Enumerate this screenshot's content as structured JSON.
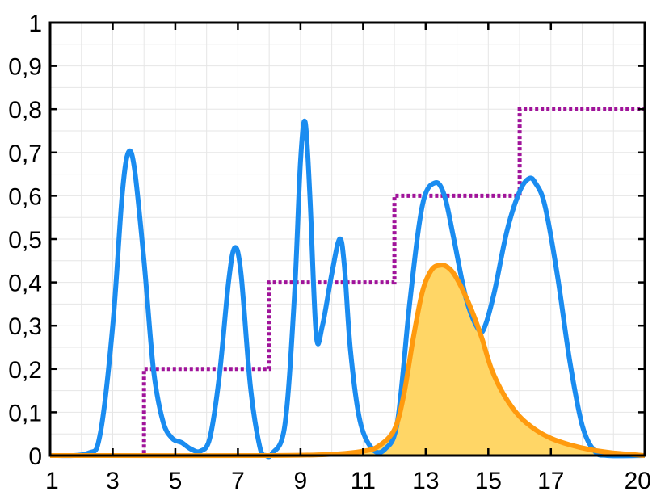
{
  "chart_data": {
    "type": "line",
    "title": "",
    "xlabel": "",
    "ylabel": "",
    "xlim": [
      1,
      20
    ],
    "ylim": [
      0,
      1
    ],
    "grid": true,
    "x_ticks": [
      {
        "value": 1,
        "label": "1"
      },
      {
        "value": 3,
        "label": "3"
      },
      {
        "value": 5,
        "label": "5"
      },
      {
        "value": 7,
        "label": "7"
      },
      {
        "value": 9,
        "label": "9"
      },
      {
        "value": 11,
        "label": "11"
      },
      {
        "value": 13,
        "label": "13"
      },
      {
        "value": 15,
        "label": "15"
      },
      {
        "value": 17,
        "label": "17"
      },
      {
        "value": 20,
        "label": "20"
      }
    ],
    "y_ticks": [
      {
        "value": 0,
        "label": "0"
      },
      {
        "value": 0.1,
        "label": "0,1"
      },
      {
        "value": 0.2,
        "label": "0,2"
      },
      {
        "value": 0.3,
        "label": "0,3"
      },
      {
        "value": 0.4,
        "label": "0,4"
      },
      {
        "value": 0.5,
        "label": "0,5"
      },
      {
        "value": 0.6,
        "label": "0,6"
      },
      {
        "value": 0.7,
        "label": "0,7"
      },
      {
        "value": 0.8,
        "label": "0,8"
      },
      {
        "value": 0.9,
        "label": "0,9"
      },
      {
        "value": 1,
        "label": "1"
      }
    ],
    "series": [
      {
        "style": "solid",
        "color": "#1a8cf0",
        "x": [
          1,
          2.2,
          2.6,
          3.0,
          3.3,
          3.5,
          3.7,
          4.0,
          4.3,
          4.6,
          4.9,
          5.2,
          5.5,
          5.8,
          6.1,
          6.4,
          6.7,
          6.9,
          7.1,
          7.4,
          7.7,
          7.9,
          8.1,
          8.5,
          8.8,
          9.0,
          9.15,
          9.3,
          9.5,
          9.7,
          10.0,
          10.25,
          10.4,
          10.6,
          10.9,
          11.3,
          11.7,
          12.1,
          12.5,
          12.9,
          13.3,
          13.6,
          13.9,
          14.3,
          14.7,
          14.9,
          15.2,
          15.6,
          16.0,
          16.3,
          16.5,
          16.8,
          17.2,
          17.6,
          18.0,
          18.4,
          18.8,
          20
        ],
        "y": [
          0,
          0.005,
          0.05,
          0.3,
          0.6,
          0.7,
          0.66,
          0.45,
          0.2,
          0.08,
          0.04,
          0.03,
          0.015,
          0.01,
          0.04,
          0.18,
          0.4,
          0.48,
          0.42,
          0.16,
          0.02,
          0.0,
          0.005,
          0.07,
          0.36,
          0.68,
          0.77,
          0.6,
          0.28,
          0.3,
          0.42,
          0.5,
          0.44,
          0.24,
          0.08,
          0.015,
          0.015,
          0.08,
          0.36,
          0.58,
          0.63,
          0.6,
          0.5,
          0.36,
          0.29,
          0.3,
          0.38,
          0.52,
          0.61,
          0.64,
          0.63,
          0.58,
          0.42,
          0.22,
          0.07,
          0.01,
          0.0,
          0.0
        ]
      },
      {
        "style": "dotted-step",
        "color": "#a0139a",
        "x": [
          1,
          4,
          4,
          8,
          8,
          12,
          12,
          16,
          16,
          20
        ],
        "y": [
          0,
          0,
          0.2,
          0.2,
          0.4,
          0.4,
          0.6,
          0.6,
          0.8,
          0.8
        ]
      },
      {
        "style": "filled",
        "color": "#ff9a0e",
        "fill": "#ffd666",
        "x": [
          1,
          8,
          10,
          11,
          11.5,
          12.0,
          12.3,
          12.6,
          12.9,
          13.2,
          13.5,
          13.7,
          13.9,
          14.2,
          14.5,
          14.8,
          15.1,
          15.5,
          16.0,
          16.5,
          17.0,
          17.6,
          18.3,
          19.0,
          20
        ],
        "y": [
          0,
          0,
          0.003,
          0.01,
          0.022,
          0.06,
          0.14,
          0.27,
          0.38,
          0.43,
          0.44,
          0.435,
          0.42,
          0.38,
          0.33,
          0.27,
          0.2,
          0.14,
          0.09,
          0.06,
          0.04,
          0.025,
          0.013,
          0.006,
          0.0
        ]
      }
    ]
  }
}
